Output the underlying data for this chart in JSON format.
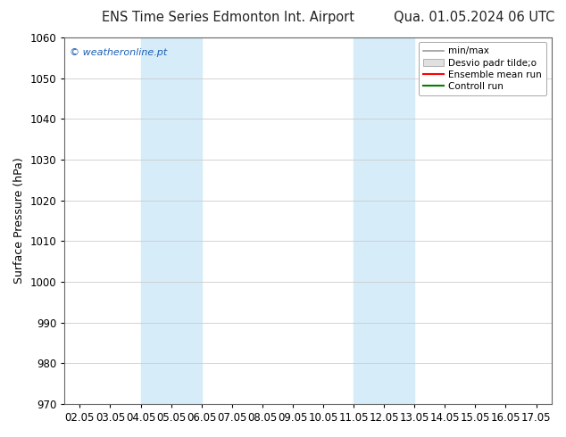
{
  "title_left": "ENS Time Series Edmonton Int. Airport",
  "title_right": "Qua. 01.05.2024 06 UTC",
  "ylabel": "Surface Pressure (hPa)",
  "ylim": [
    970,
    1060
  ],
  "yticks": [
    970,
    980,
    990,
    1000,
    1010,
    1020,
    1030,
    1040,
    1050,
    1060
  ],
  "xlim_dates": [
    "02.05",
    "03.05",
    "04.05",
    "05.05",
    "06.05",
    "07.05",
    "08.05",
    "09.05",
    "10.05",
    "11.05",
    "12.05",
    "13.05",
    "14.05",
    "15.05",
    "16.05",
    "17.05"
  ],
  "xtick_positions": [
    0,
    1,
    2,
    3,
    4,
    5,
    6,
    7,
    8,
    9,
    10,
    11,
    12,
    13,
    14,
    15
  ],
  "shaded_regions": [
    {
      "xstart": 2,
      "xend": 4,
      "color": "#d6ecf8"
    },
    {
      "xstart": 9,
      "xend": 11,
      "color": "#d6ecf8"
    }
  ],
  "watermark": "© weatheronline.pt",
  "watermark_color": "#1a5fb4",
  "legend_items": [
    {
      "label": "min/max",
      "color": "#999999",
      "style": "minmax"
    },
    {
      "label": "Desvio padr tilde;o",
      "color": "#cccccc",
      "style": "band"
    },
    {
      "label": "Ensemble mean run",
      "color": "red",
      "style": "line"
    },
    {
      "label": "Controll run",
      "color": "green",
      "style": "line"
    }
  ],
  "bg_color": "#ffffff",
  "plot_bg_color": "#ffffff",
  "grid_color": "#cccccc",
  "title_fontsize": 10.5,
  "label_fontsize": 9,
  "tick_fontsize": 8.5
}
